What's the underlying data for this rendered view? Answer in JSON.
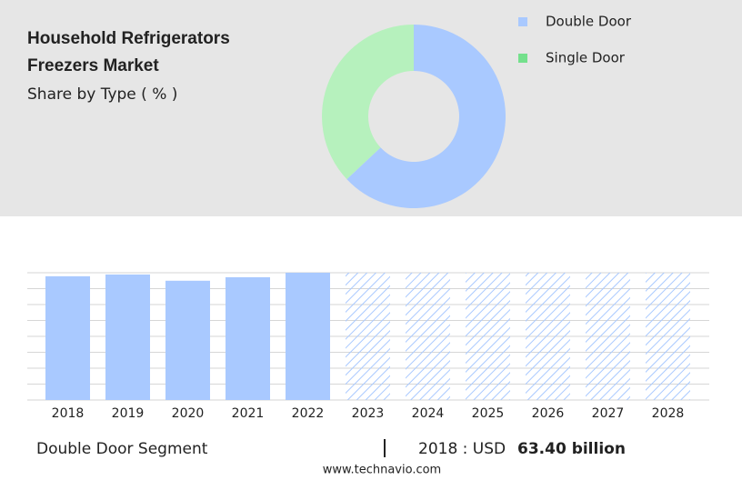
{
  "chart_data": [
    {
      "type": "pie",
      "title": "Household Refrigerators Freezers Market",
      "subtitle": "Share by Type ( % )",
      "categories": [
        "Double Door",
        "Single Door"
      ],
      "values": [
        63,
        37
      ],
      "colors": [
        "#a9c9ff",
        "#b6f1bd"
      ],
      "legend_colors": [
        "#a9c9ff",
        "#74e08c"
      ],
      "donut": true,
      "legend": "top-right"
    },
    {
      "type": "bar",
      "categories": [
        "2018",
        "2019",
        "2020",
        "2021",
        "2022",
        "2023",
        "2024",
        "2025",
        "2026",
        "2027",
        "2028"
      ],
      "values": [
        63.4,
        64.3,
        61.1,
        62.9,
        65.2,
        null,
        null,
        null,
        null,
        null,
        null
      ],
      "color": "#a9c9ff",
      "ylim": [
        0,
        65.2
      ],
      "grid": true
    }
  ],
  "footer": {
    "segment": "Double Door Segment",
    "year_label": "2018 : USD",
    "value": "63.40 billion"
  },
  "source": "www.technavio.com"
}
